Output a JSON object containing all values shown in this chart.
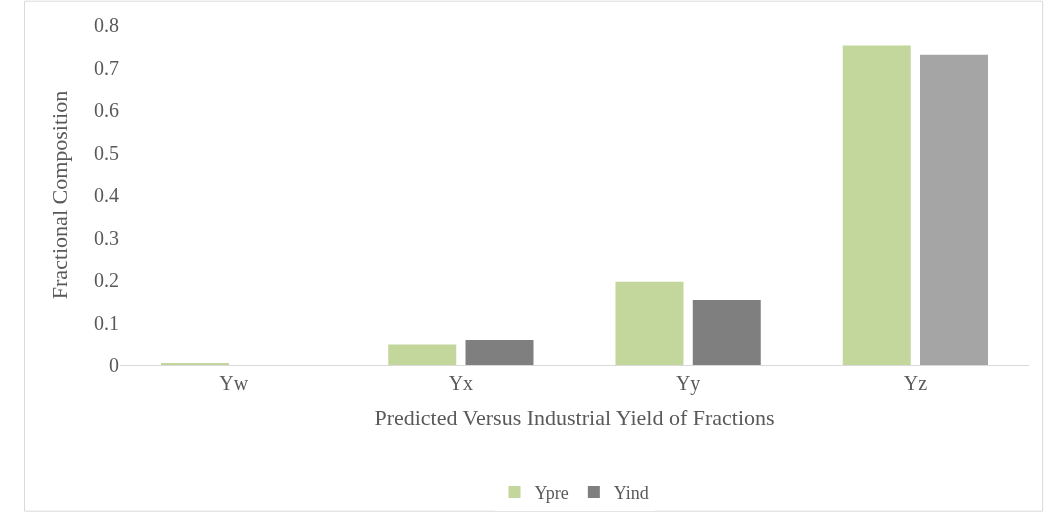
{
  "chart_data": {
    "type": "bar",
    "xlabel": "Predicted Versus Industrial Yield of Fractions",
    "ylabel": "Fractional Composition",
    "categories": [
      "Yw",
      "Yx",
      "Yy",
      "Yz"
    ],
    "series": [
      {
        "name": "Ypre",
        "color": "#c3d69b",
        "values": [
          0.003,
          0.048,
          0.196,
          0.752
        ]
      },
      {
        "name": "Yind",
        "color": "#7f7f7f",
        "colors": [
          "#7f7f7f",
          "#7f7f7f",
          "#7f7f7f",
          "#a5a5a5"
        ],
        "values": [
          0,
          0.059,
          0.153,
          0.73
        ]
      }
    ],
    "ylim": [
      0,
      0.8
    ],
    "yticks": [
      0,
      0.1,
      0.2,
      0.3,
      0.4,
      0.5,
      0.6,
      0.7,
      0.8
    ],
    "grid": false,
    "legend": "bottom"
  }
}
